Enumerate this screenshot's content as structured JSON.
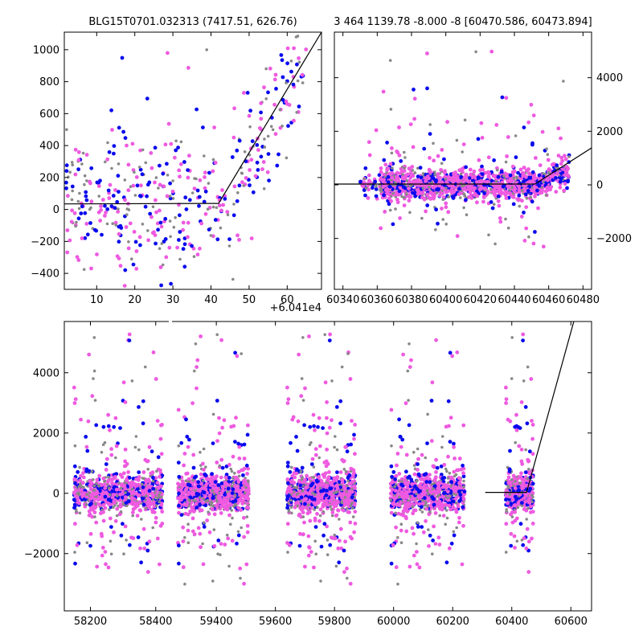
{
  "colors": {
    "pink": "#ee5ae0",
    "blue": "#0a0aee",
    "gray": "#888888",
    "model": "#000000"
  },
  "chart_data": [
    {
      "id": "zoom",
      "type": "scatter",
      "title": "BLG15T0701.032313 (7417.51, 626.76)",
      "x_offset_label": "+6.041e4",
      "xlim": [
        1.5,
        69
      ],
      "ylim": [
        -500,
        1110
      ],
      "xticks": [
        10,
        20,
        30,
        40,
        50,
        60
      ],
      "yticks": [
        -400,
        -200,
        0,
        200,
        400,
        600,
        800,
        1000
      ],
      "model_line": [
        [
          1.5,
          35
        ],
        [
          42,
          38
        ],
        [
          69,
          1110
        ]
      ]
    },
    {
      "id": "recent",
      "type": "scatter",
      "title": "3 464 1139.78 -8.000 -8 [60470.586, 60473.894]",
      "xlim": [
        60335,
        60485
      ],
      "ylim": [
        -3900,
        5700
      ],
      "xticks": [
        60340,
        60360,
        60380,
        60400,
        60420,
        60440,
        60460,
        60480
      ],
      "yticks": [
        -2000,
        0,
        2000,
        4000
      ],
      "model_line": [
        [
          60335,
          30
        ],
        [
          60452,
          30
        ],
        [
          60485,
          1380
        ]
      ]
    },
    {
      "id": "full",
      "type": "scatter",
      "title": "",
      "xlim": [
        58120,
        60670
      ],
      "ylim": [
        -3900,
        5700
      ],
      "xticks": [
        58200,
        58400,
        59400,
        59600,
        59800,
        60000,
        60200,
        60400,
        60600
      ],
      "yticks": [
        -2000,
        0,
        2000,
        4000
      ],
      "break": [
        58440,
        59250
      ],
      "model_line": [
        [
          60310,
          30
        ],
        [
          60450,
          30
        ],
        [
          60610,
          5700
        ]
      ]
    }
  ]
}
